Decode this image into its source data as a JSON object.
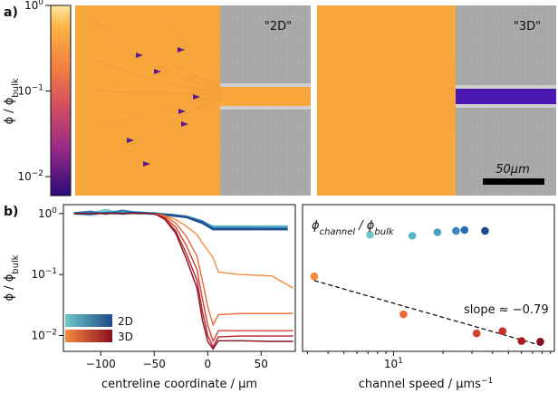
{
  "panel_a": {
    "letter": "a)",
    "colorbar": {
      "label": "ϕ / ϕ_bulk",
      "ticks": [
        {
          "value": 1,
          "label": "10^0"
        },
        {
          "value": 0.1,
          "label": "10^-1"
        },
        {
          "value": 0.01,
          "label": "10^-2"
        }
      ],
      "colors": [
        "#fde8a0",
        "#fba43a",
        "#e8604c",
        "#b3307a",
        "#6a1596",
        "#2b0a7a"
      ]
    },
    "image_2d": {
      "label": "\"2D\""
    },
    "image_3d": {
      "label": "\"3D\""
    },
    "scalebar": {
      "label": "50μm"
    }
  },
  "panel_b": {
    "letter": "b)",
    "legend": [
      {
        "label": "2D",
        "colors": [
          "#6ec7c7",
          "#1e4a8a"
        ]
      },
      {
        "label": "3D",
        "colors": [
          "#f58a3b",
          "#8a0f22"
        ]
      }
    ]
  },
  "chart_data": [
    {
      "type": "line",
      "xlabel": "centreline coordinate / μm",
      "ylabel": "ϕ / ϕ_bulk",
      "yscale": "log",
      "xlim": [
        -135,
        82
      ],
      "ylim": [
        0.0055,
        1.4
      ],
      "xticks": [
        -100,
        -50,
        0,
        50
      ],
      "yticks": [
        {
          "value": 1,
          "label": "10^0"
        },
        {
          "value": 0.1,
          "label": "10^-1"
        },
        {
          "value": 0.01,
          "label": "10^-2"
        }
      ],
      "series": [
        {
          "name": "2D-1",
          "group": "2D",
          "color": "#6ec7c7",
          "x": [
            -125,
            -110,
            -95,
            -80,
            -65,
            -50,
            -35,
            -20,
            -5,
            5,
            20,
            40,
            60,
            75
          ],
          "y": [
            1.0,
            1.0,
            1.15,
            0.98,
            1.05,
            1.0,
            0.92,
            0.88,
            0.72,
            0.62,
            0.62,
            0.62,
            0.62,
            0.62
          ]
        },
        {
          "name": "2D-2",
          "group": "2D",
          "color": "#4ea6c6",
          "x": [
            -125,
            -110,
            -95,
            -80,
            -65,
            -50,
            -35,
            -20,
            -5,
            5,
            20,
            40,
            60,
            75
          ],
          "y": [
            1.0,
            0.95,
            1.05,
            1.08,
            1.0,
            1.02,
            0.95,
            0.9,
            0.74,
            0.6,
            0.6,
            0.6,
            0.6,
            0.6
          ]
        },
        {
          "name": "2D-3",
          "group": "2D",
          "color": "#2f7fb8",
          "x": [
            -125,
            -110,
            -95,
            -80,
            -65,
            -50,
            -35,
            -20,
            -5,
            5,
            20,
            40,
            60,
            75
          ],
          "y": [
            1.02,
            1.08,
            0.98,
            1.12,
            1.03,
            0.98,
            0.96,
            0.9,
            0.75,
            0.58,
            0.58,
            0.58,
            0.57,
            0.57
          ]
        },
        {
          "name": "2D-4",
          "group": "2D",
          "color": "#1e4a8a",
          "x": [
            -125,
            -110,
            -95,
            -80,
            -65,
            -50,
            -35,
            -20,
            -5,
            5,
            20,
            40,
            60,
            75
          ],
          "y": [
            1.0,
            1.0,
            1.02,
            1.0,
            1.04,
            1.0,
            0.94,
            0.87,
            0.7,
            0.55,
            0.55,
            0.55,
            0.55,
            0.55
          ]
        },
        {
          "name": "3D-1",
          "group": "3D",
          "color": "#f58a3b",
          "x": [
            -125,
            -100,
            -75,
            -50,
            -40,
            -30,
            -20,
            -10,
            -5,
            0,
            5,
            10,
            30,
            60,
            80
          ],
          "y": [
            1.0,
            1.0,
            1.0,
            1.0,
            0.92,
            0.8,
            0.62,
            0.45,
            0.33,
            0.25,
            0.19,
            0.11,
            0.1,
            0.095,
            0.06
          ]
        },
        {
          "name": "3D-2",
          "group": "3D",
          "color": "#ee6a35",
          "x": [
            -125,
            -100,
            -75,
            -50,
            -40,
            -30,
            -20,
            -10,
            -5,
            0,
            5,
            10,
            30,
            60,
            80
          ],
          "y": [
            1.0,
            1.0,
            1.0,
            1.0,
            0.9,
            0.7,
            0.42,
            0.2,
            0.08,
            0.03,
            0.015,
            0.022,
            0.023,
            0.023,
            0.023
          ]
        },
        {
          "name": "3D-3",
          "group": "3D",
          "color": "#d8402f",
          "x": [
            -125,
            -100,
            -75,
            -50,
            -40,
            -30,
            -20,
            -10,
            -5,
            0,
            5,
            10,
            30,
            60,
            80
          ],
          "y": [
            1.0,
            1.0,
            1.0,
            1.0,
            0.86,
            0.6,
            0.3,
            0.12,
            0.04,
            0.015,
            0.008,
            0.012,
            0.012,
            0.012,
            0.012
          ]
        },
        {
          "name": "3D-4",
          "group": "3D",
          "color": "#b51f2a",
          "x": [
            -125,
            -100,
            -75,
            -50,
            -40,
            -30,
            -20,
            -10,
            -5,
            0,
            5,
            10,
            30,
            60,
            80
          ],
          "y": [
            1.0,
            1.0,
            1.0,
            1.0,
            0.82,
            0.52,
            0.22,
            0.08,
            0.025,
            0.01,
            0.0065,
            0.0095,
            0.0098,
            0.0098,
            0.0098
          ]
        },
        {
          "name": "3D-5",
          "group": "3D",
          "color": "#8a0f22",
          "x": [
            -125,
            -100,
            -75,
            -50,
            -40,
            -30,
            -20,
            -10,
            -5,
            0,
            5,
            10,
            30,
            60,
            80
          ],
          "y": [
            1.0,
            1.0,
            1.0,
            1.0,
            0.8,
            0.48,
            0.18,
            0.06,
            0.018,
            0.008,
            0.006,
            0.0082,
            0.0082,
            0.008,
            0.008
          ]
        }
      ]
    },
    {
      "type": "scatter",
      "title": "ϕ_channel / ϕ_bulk",
      "xlabel": "channel speed / μms^-1",
      "xscale": "log",
      "yscale": "log",
      "xlim": [
        2.8,
        95
      ],
      "ylim": [
        0.0055,
        1.6
      ],
      "xticks": [
        {
          "value": 10,
          "label": "10^1"
        }
      ],
      "annotation": "slope ≈ −0.79",
      "series": [
        {
          "name": "2D",
          "points": [
            {
              "x": 7.2,
              "y": 0.5,
              "color": "#6ec7c7"
            },
            {
              "x": 13.0,
              "y": 0.48,
              "color": "#58b5c8"
            },
            {
              "x": 18.5,
              "y": 0.55,
              "color": "#4a9ec8"
            },
            {
              "x": 24.0,
              "y": 0.58,
              "color": "#3a86bd"
            },
            {
              "x": 27.0,
              "y": 0.6,
              "color": "#2a6cb0"
            },
            {
              "x": 36.0,
              "y": 0.58,
              "color": "#1e4a8a"
            }
          ]
        },
        {
          "name": "3D",
          "points": [
            {
              "x": 3.3,
              "y": 0.1,
              "color": "#f58a3b"
            },
            {
              "x": 11.5,
              "y": 0.023,
              "color": "#ee6a35"
            },
            {
              "x": 32.0,
              "y": 0.011,
              "color": "#d8402f"
            },
            {
              "x": 46.0,
              "y": 0.012,
              "color": "#c52f2c"
            },
            {
              "x": 60.0,
              "y": 0.0082,
              "color": "#a71c28"
            },
            {
              "x": 78.0,
              "y": 0.008,
              "color": "#8a0f22"
            }
          ]
        }
      ],
      "fit": {
        "x": [
          3.3,
          82
        ],
        "y": [
          0.085,
          0.0067
        ],
        "style": "dashed"
      }
    }
  ]
}
